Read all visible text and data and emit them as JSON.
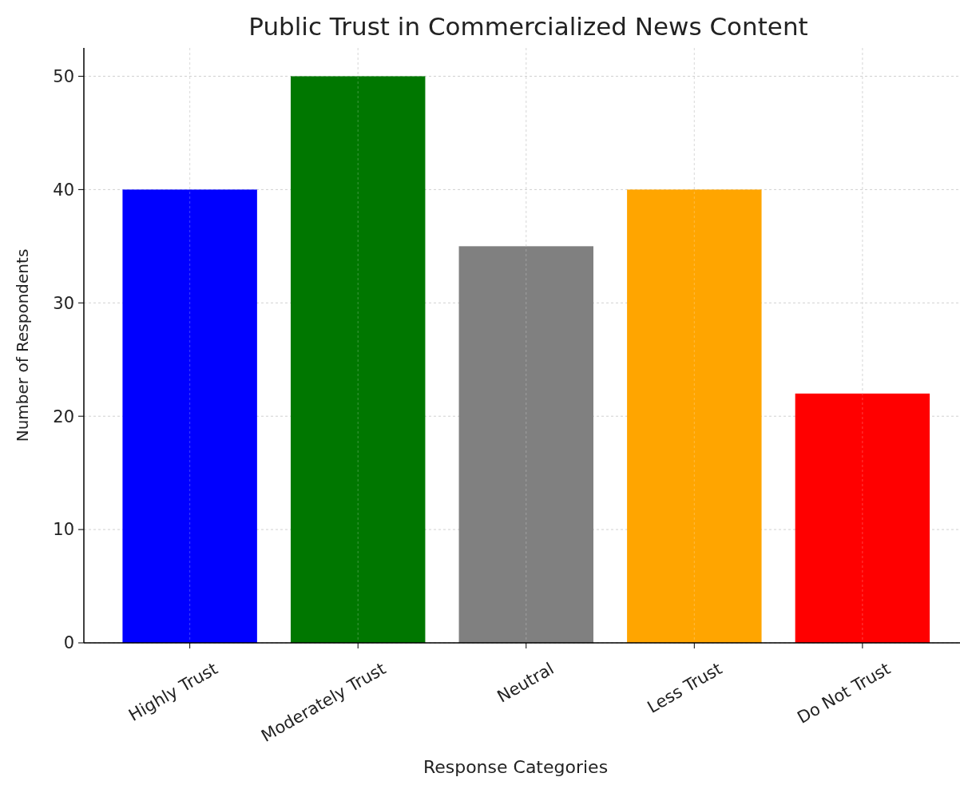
{
  "chart_data": {
    "type": "bar",
    "title": "Public Trust in Commercialized News Content",
    "xlabel": "Response Categories",
    "ylabel": "Number of Respondents",
    "categories": [
      "Highly Trust",
      "Moderately Trust",
      "Neutral",
      "Less Trust",
      "Do Not Trust"
    ],
    "values": [
      40,
      50,
      35,
      40,
      22
    ],
    "colors": [
      "#0000ff",
      "#007700",
      "#808080",
      "#ffa500",
      "#ff0000"
    ],
    "ylim": [
      0,
      52.5
    ],
    "yticks": [
      0,
      10,
      20,
      30,
      40,
      50
    ],
    "grid": true
  }
}
